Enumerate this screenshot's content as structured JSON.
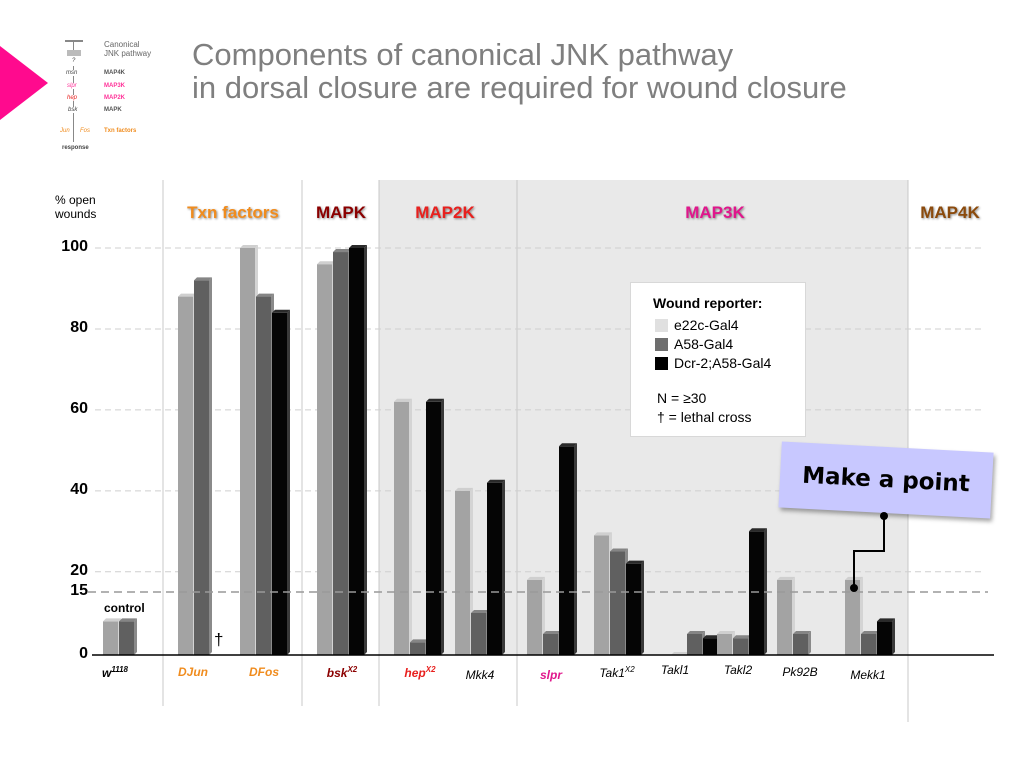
{
  "title": {
    "line1": "Components of canonical JNK pathway",
    "line2": "in dorsal closure are required for wound closure"
  },
  "pathway_diagram": {
    "title_line1": "Canonical",
    "title_line2": "JNK pathway",
    "nodes": [
      "?",
      "msn",
      "slpr",
      "hep",
      "bsk",
      "Jun",
      "Fos",
      "response"
    ],
    "labels": [
      "MAP4K",
      "MAP3K",
      "MAP2K",
      "MAPK",
      "Txn factors"
    ]
  },
  "callout": {
    "text": "Make a point"
  },
  "legend": {
    "title": "Wound reporter:",
    "items": [
      {
        "label": "e22c-Gal4",
        "color": "#e0e0e0"
      },
      {
        "label": "A58-Gal4",
        "color": "#6e6e6e"
      },
      {
        "label": "Dcr-2;A58-Gal4",
        "color": "#000000"
      }
    ],
    "note1": "N = ≥30",
    "note2": "† = lethal cross"
  },
  "colors": {
    "txn": "#f08c1e",
    "mapk": "#8b0000",
    "map2k": "#e8201e",
    "map3k": "#e0168c",
    "map4k": "#8b4a0c",
    "shade": "#e9e9e9"
  },
  "chart_data": {
    "type": "bar",
    "ylabel": "% open wounds",
    "ylim": [
      0,
      100
    ],
    "yticks": [
      "0",
      "15",
      "20",
      "40",
      "60",
      "80",
      "100"
    ],
    "dashed_reference": 15,
    "groups": [
      {
        "label": "Txn factors",
        "color": "#f08c1e"
      },
      {
        "label": "MAPK",
        "color": "#8b0000"
      },
      {
        "label": "MAP2K",
        "color": "#e8201e"
      },
      {
        "label": "MAP3K",
        "color": "#e0168c"
      },
      {
        "label": "MAP4K",
        "color": "#8b4a0c"
      }
    ],
    "categories": [
      {
        "name": "w",
        "sup": "1118",
        "color": "#000000",
        "bold": true
      },
      {
        "name": "DJun",
        "sup": "",
        "color": "#f08c1e",
        "bold": true
      },
      {
        "name": "DFos",
        "sup": "",
        "color": "#f08c1e",
        "bold": true
      },
      {
        "name": "bsk",
        "sup": "X2",
        "color": "#8b0000",
        "bold": true
      },
      {
        "name": "hep",
        "sup": "X2",
        "color": "#e8201e",
        "bold": true
      },
      {
        "name": "Mkk4",
        "sup": "",
        "color": "#000000",
        "bold": false
      },
      {
        "name": "slpr",
        "sup": "",
        "color": "#e0168c",
        "bold": true
      },
      {
        "name": "Tak1",
        "sup": "X2",
        "color": "#000000",
        "bold": false
      },
      {
        "name": "Takl1",
        "sup": "",
        "color": "#000000",
        "bold": false
      },
      {
        "name": "Takl2",
        "sup": "",
        "color": "#000000",
        "bold": false
      },
      {
        "name": "Pk92B",
        "sup": "",
        "color": "#000000",
        "bold": false
      },
      {
        "name": "Mekk1",
        "sup": "",
        "color": "#000000",
        "bold": false
      }
    ],
    "series": [
      {
        "name": "e22c-Gal4",
        "values": [
          8,
          88,
          100,
          96,
          62,
          40,
          18,
          29,
          0,
          5,
          18,
          18
        ]
      },
      {
        "name": "A58-Gal4",
        "values": [
          8,
          92,
          88,
          99,
          3,
          10,
          5,
          25,
          5,
          4,
          5,
          5
        ]
      },
      {
        "name": "Dcr-2;A58-Gal4",
        "values": [
          null,
          null,
          84,
          100,
          62,
          42,
          51,
          22,
          4,
          30,
          null,
          8
        ]
      }
    ],
    "control_label": "control",
    "lethal_marker": "†"
  }
}
